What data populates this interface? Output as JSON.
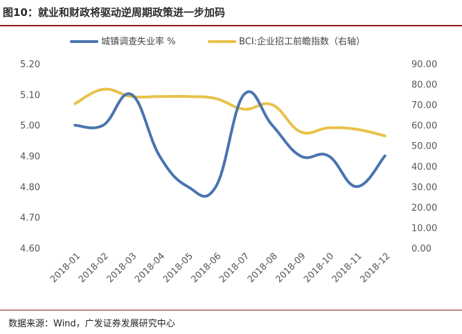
{
  "figure": {
    "title": "图10：就业和财政将驱动逆周期政策进一步加码",
    "source": "数据来源：Wind，广发证券发展研究中心"
  },
  "colors": {
    "series1": "#4a74b0",
    "series2": "#e8c24a",
    "axis_text": "#555555",
    "rule": "#8b1a1a"
  },
  "chart_data": {
    "type": "line",
    "categories": [
      "2018-01",
      "2018-02",
      "2018-03",
      "2018-04",
      "2018-05",
      "2018-06",
      "2018-07",
      "2018-08",
      "2018-09",
      "2018-10",
      "2018-11",
      "2018-12"
    ],
    "y_left": {
      "min": 4.6,
      "max": 5.2,
      "step": 0.1,
      "ticks": [
        "4.60",
        "4.70",
        "4.80",
        "4.90",
        "5.00",
        "5.10",
        "5.20"
      ]
    },
    "y_right": {
      "min": 0,
      "max": 90,
      "step": 10,
      "ticks": [
        "0.00",
        "10.00",
        "20.00",
        "30.00",
        "40.00",
        "50.00",
        "60.00",
        "70.00",
        "80.00",
        "90.00"
      ]
    },
    "series": [
      {
        "name": "城镇调查失业率 %",
        "axis": "left",
        "values": [
          5.0,
          5.0,
          5.1,
          4.9,
          4.8,
          4.8,
          5.1,
          5.0,
          4.9,
          4.9,
          4.8,
          4.9
        ]
      },
      {
        "name": "BCI:企业招工前瞻指数（右轴）",
        "axis": "right",
        "values": [
          70.5,
          77.5,
          74.0,
          74.0,
          74.0,
          73.0,
          67.8,
          70.0,
          56.8,
          58.7,
          58.0,
          54.8
        ]
      }
    ],
    "legend_position": "top",
    "grid": false
  }
}
